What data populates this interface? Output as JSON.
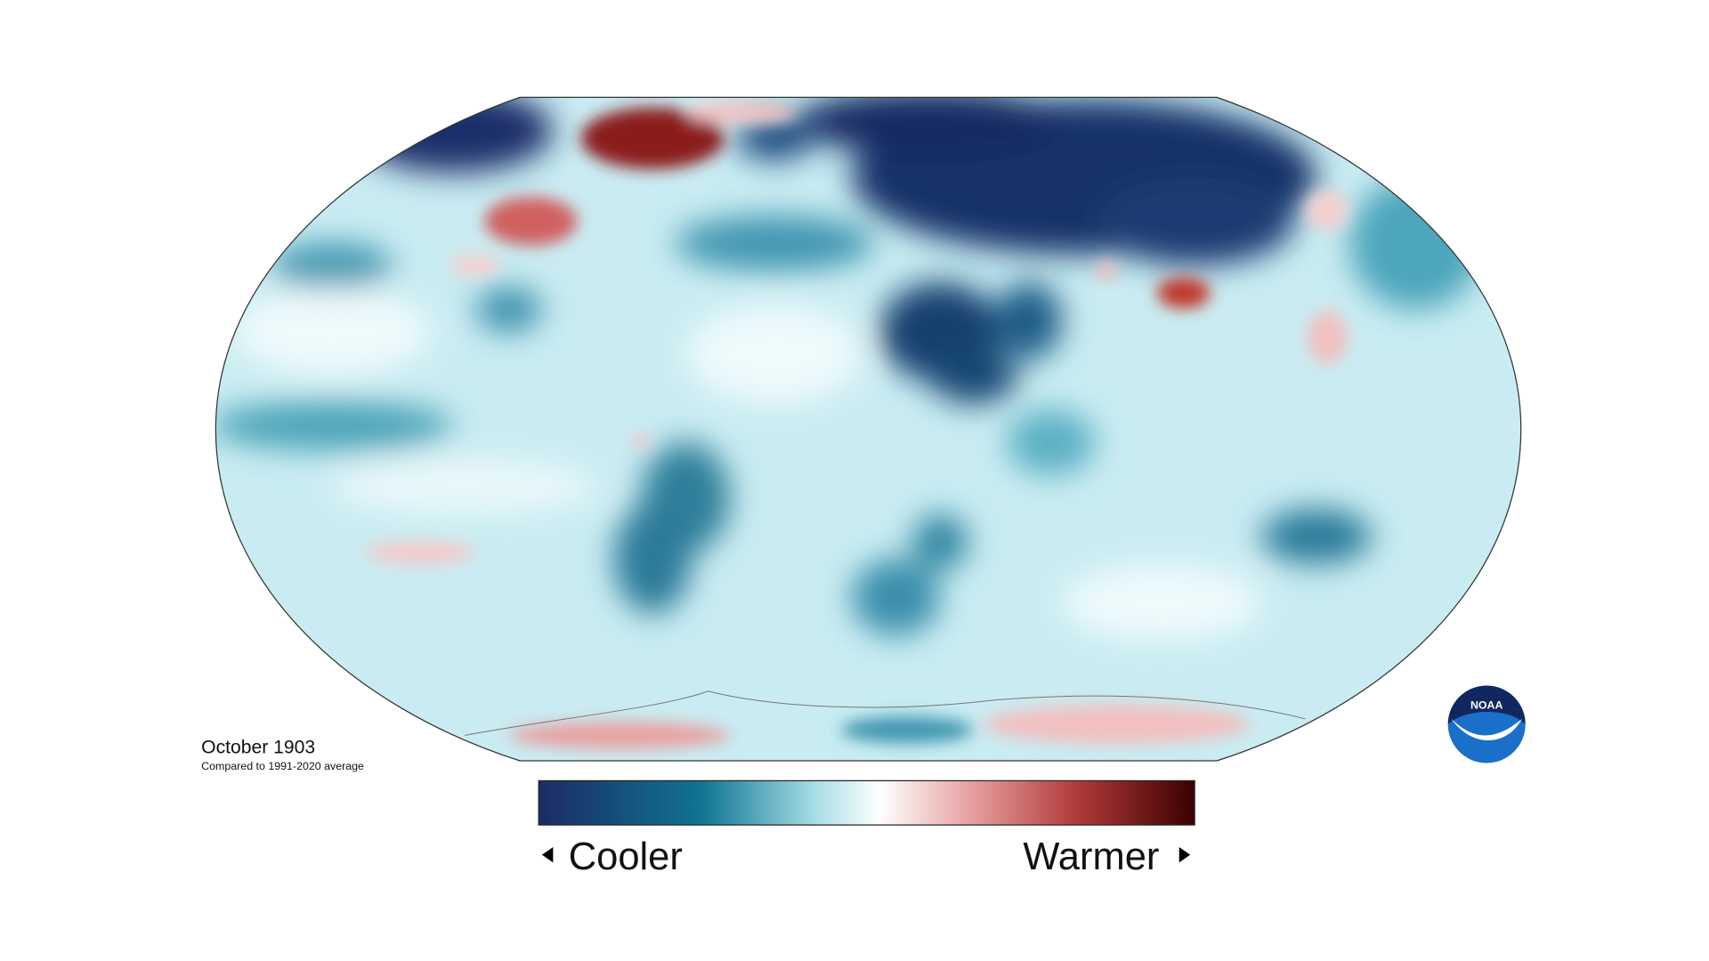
{
  "map": {
    "title": "October 1903",
    "subtitle": "Compared to 1991-2020 average"
  },
  "legend": {
    "low_label": "Cooler",
    "high_label": "Warmer"
  },
  "logo": {
    "text": "NOAA"
  }
}
